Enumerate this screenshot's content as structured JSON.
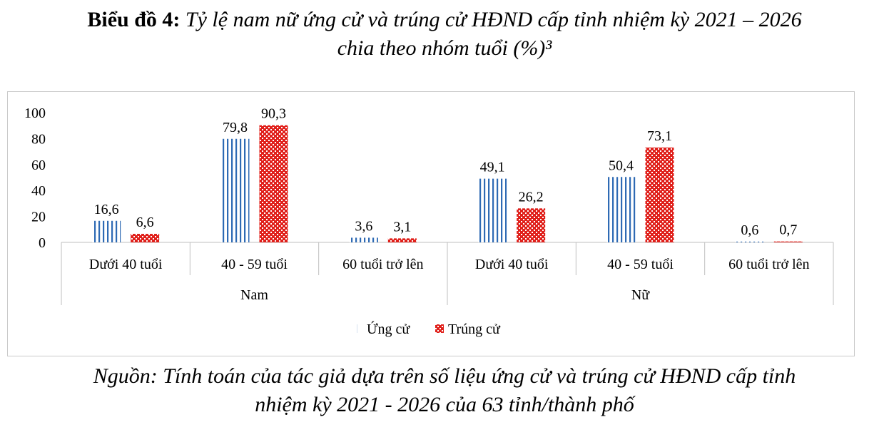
{
  "title": {
    "prefix": "Biểu đồ 4:",
    "line1": "Tỷ lệ nam nữ ứng cử và trúng cử HĐND cấp tỉnh nhiệm kỳ 2021 – 2026",
    "line2": "chia theo nhóm tuổi (%)³"
  },
  "source": {
    "line1": "Nguồn: Tính toán của tác giả dựa trên số liệu ứng cử và trúng cử HĐND cấp tỉnh",
    "line2": "nhiệm kỳ 2021 - 2026 của 63 tỉnh/thành phố"
  },
  "colors": {
    "ung_cu": "#2e6ab4",
    "trung_cu": "#e0201b"
  },
  "chart_data": {
    "type": "bar",
    "ylim": [
      0,
      100
    ],
    "yticks": [
      0,
      20,
      40,
      60,
      80,
      100
    ],
    "groups": [
      "Nam",
      "Nữ"
    ],
    "categories": [
      "Dưới 40 tuổi",
      "40 - 59 tuổi",
      "60 tuổi trở lên",
      "Dưới 40 tuổi",
      "40 - 59 tuổi",
      "60 tuổi trở lên"
    ],
    "series": [
      {
        "name": "Ứng cử",
        "values": [
          16.6,
          79.8,
          3.6,
          49.1,
          50.4,
          0.6
        ],
        "labels": [
          "16,6",
          "79,8",
          "3,6",
          "49,1",
          "50,4",
          "0,6"
        ]
      },
      {
        "name": "Trúng cử",
        "values": [
          6.6,
          90.3,
          3.1,
          26.2,
          73.1,
          0.7
        ],
        "labels": [
          "6,6",
          "90,3",
          "3,1",
          "26,2",
          "73,1",
          "0,7"
        ]
      }
    ],
    "legend_position": "bottom"
  }
}
